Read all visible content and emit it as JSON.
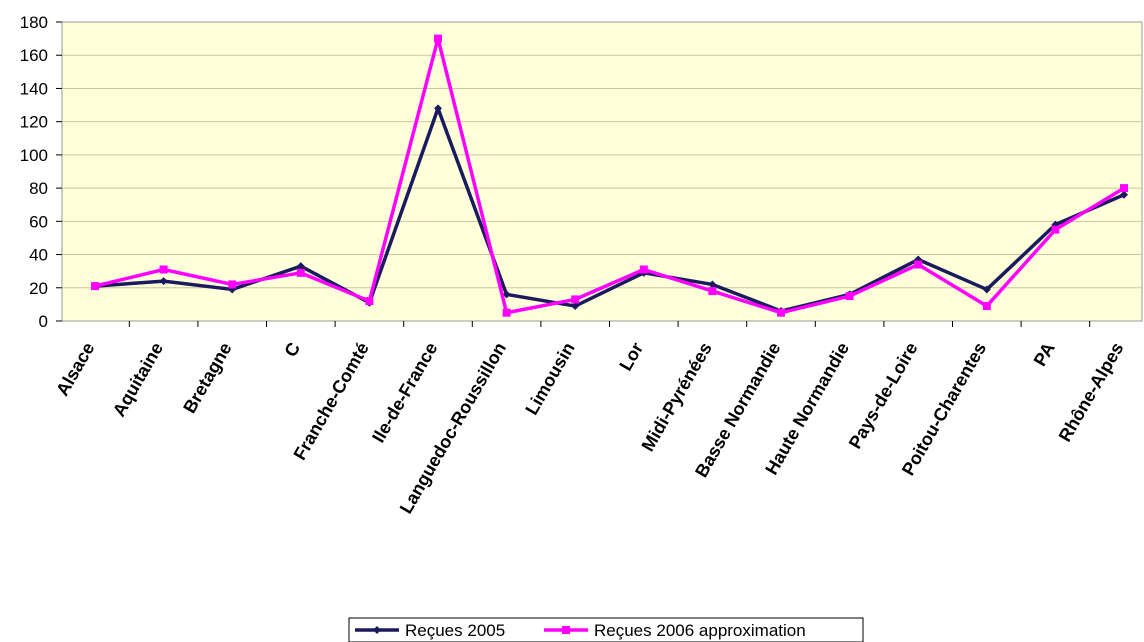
{
  "chart_data": {
    "type": "line",
    "categories": [
      "Alsace",
      "Aquitaine",
      "Bretagne",
      "C",
      "Franche-Comté",
      "Ile-de-France",
      "Languedoc-Roussillon",
      "Limousin",
      "Lor",
      "Midi-Pyrénées",
      "Basse Normandie",
      "Haute Normandie",
      "Pays-de-Loire",
      "Poitou-Charentes",
      "PA",
      "Rhône-Alpes"
    ],
    "series": [
      {
        "name": "Reçues 2005",
        "color": "#1a1a5e",
        "marker": "diamond",
        "values": [
          21,
          24,
          19,
          33,
          11,
          128,
          16,
          9,
          29,
          22,
          6,
          16,
          37,
          19,
          58,
          76
        ]
      },
      {
        "name": "Reçues 2006 approximation",
        "color": "#ff00ff",
        "marker": "square",
        "values": [
          21,
          31,
          22,
          29,
          12,
          170,
          5,
          13,
          31,
          18,
          5,
          15,
          34,
          9,
          55,
          80
        ]
      }
    ],
    "ylim": [
      0,
      180
    ],
    "yticks": [
      0,
      20,
      40,
      60,
      80,
      100,
      120,
      140,
      160,
      180
    ],
    "grid": true,
    "legend_position": "bottom-center",
    "plot_background": "#ffffd9",
    "xlabel": "",
    "ylabel": "",
    "title": ""
  }
}
